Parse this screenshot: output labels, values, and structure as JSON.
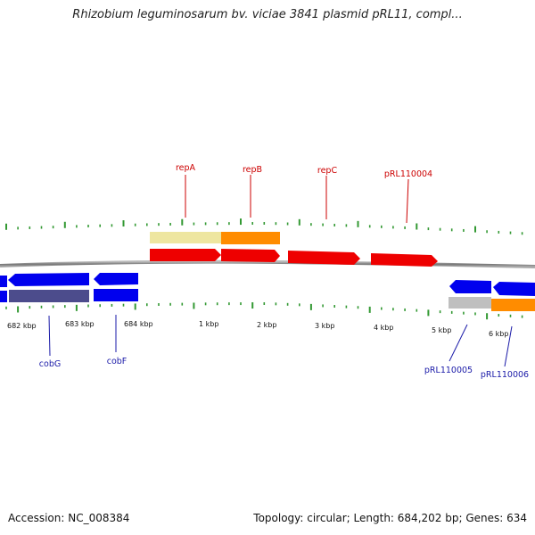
{
  "title": "Rhizobium leguminosarum bv. viciae 3841 plasmid pRL11, compl...",
  "accession": "Accession: NC_008384",
  "summary": "Topology: circular; Length: 684,202 bp; Genes: 634",
  "scale_labels": [
    "682 kbp",
    "683 kbp",
    "684 kbp",
    "1 kbp",
    "2 kbp",
    "3 kbp",
    "4 kbp",
    "5 kbp",
    "6 kbp"
  ],
  "top_genes": [
    "repA",
    "repB",
    "repC",
    "pRL110004"
  ],
  "bottom_genes": [
    "cobG",
    "cobF",
    "pRL110005",
    "pRL110006"
  ],
  "colors": {
    "plus_strand_gene": "#ee0000",
    "minus_strand_gene": "#0000ee",
    "top_label": "#cc0000",
    "bottom_label": "#1a1aa8",
    "tick": "#339933",
    "backbone": "#888888",
    "cds_orange": "#ff8c00",
    "cds_khaki": "#eee6a0",
    "cds_slate": "#4c4c8c",
    "cds_grey": "#bfbfbf"
  }
}
